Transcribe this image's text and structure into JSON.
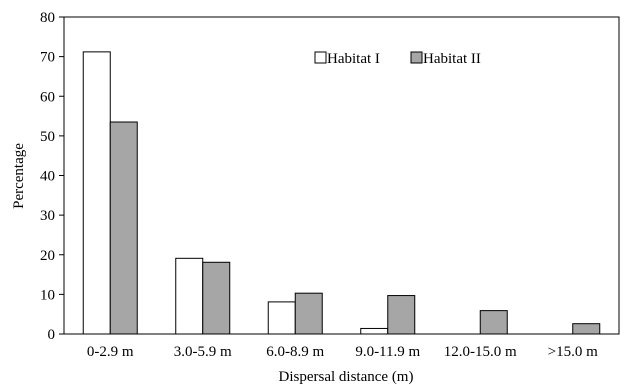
{
  "chart_data": {
    "type": "bar",
    "title": "",
    "xlabel": "Dispersal distance (m)",
    "ylabel": "Percentage",
    "ylim": [
      0,
      80
    ],
    "yticks": [
      0,
      10,
      20,
      30,
      40,
      50,
      60,
      70,
      80
    ],
    "grid": false,
    "legend_position": "top-right",
    "categories": [
      "0-2.9 m",
      "3.0-5.9 m",
      "6.0-8.9 m",
      "9.0-11.9 m",
      "12.0-15.0 m",
      ">15.0 m"
    ],
    "series": [
      {
        "name": "Habitat I",
        "color": "#ffffff",
        "values": [
          71.2,
          19.1,
          8.1,
          1.4,
          0,
          0
        ]
      },
      {
        "name": "Habitat II",
        "color": "#a6a6a6",
        "values": [
          53.5,
          18.1,
          10.3,
          9.7,
          5.9,
          2.6
        ]
      }
    ]
  }
}
